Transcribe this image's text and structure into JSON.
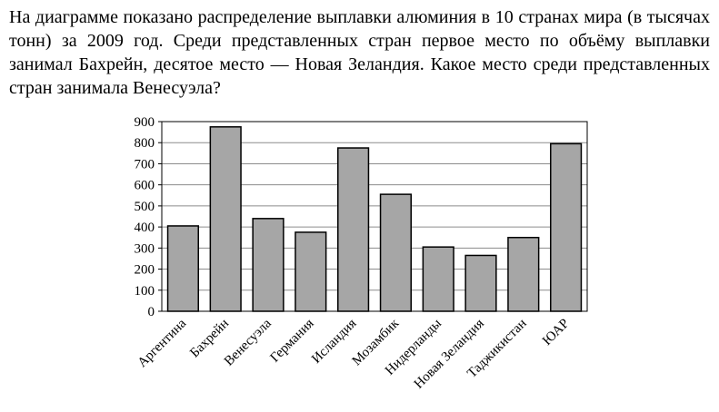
{
  "question": "На диаграмме показано распределение выплавки алюминия в 10 странах мира (в тысячах тонн) за 2009 год. Среди представленных стран первое место по объёму выплавки занимал Бахрейн, десятое место — Новая Зеландия. Какое место среди представленных стран занимала Венесуэла?",
  "chart_data": {
    "type": "bar",
    "categories": [
      "Аргентина",
      "Бахрейн",
      "Венесуэла",
      "Германия",
      "Исландия",
      "Мозамбик",
      "Нидерланды",
      "Новая Зеландия",
      "Таджикистан",
      "ЮАР"
    ],
    "values": [
      405,
      875,
      440,
      375,
      775,
      555,
      305,
      265,
      350,
      795
    ],
    "color": "#a6a6a6",
    "ylim": [
      0,
      900
    ],
    "yticks": [
      0,
      100,
      200,
      300,
      400,
      500,
      600,
      700,
      800,
      900
    ],
    "grid": true
  }
}
